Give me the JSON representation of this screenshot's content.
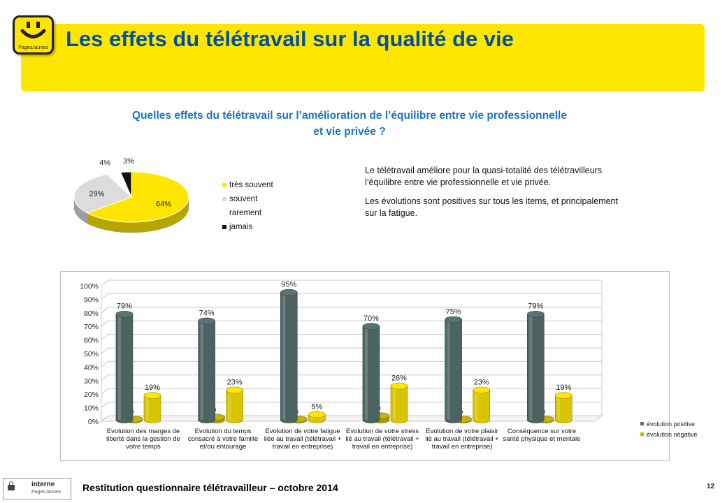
{
  "header": {
    "title": "Les effets du télétravail sur la qualité de vie",
    "logo_text": "PagesJaunes",
    "logo_color": "#ffe600"
  },
  "question": {
    "line1": "Quelles effets du télétravail sur l’amélioration de l’équilibre entre vie professionnelle",
    "line2": "et vie privée ?"
  },
  "summary": {
    "p1": "Le télétravail améliore pour la quasi-totalité des télétravilleurs l’équilibre entre vie professionnelle et vie privée.",
    "p2": "Les évolutions sont positives sur tous les items, et principalement sur la fatigue."
  },
  "chart_data": [
    {
      "type": "pie",
      "labels": [
        "très souvent",
        "souvent",
        "rarement",
        "jamais"
      ],
      "values": [
        64,
        29,
        4,
        3
      ],
      "value_labels": [
        "64%",
        "29%",
        "4%",
        "3%"
      ],
      "legend_lines": [
        "très souvent",
        "souvent",
        "rarement",
        "jamais"
      ],
      "colors": [
        "#ffe600",
        "#dcdcdc",
        "#ffffff",
        "#111111"
      ],
      "legend": "right"
    },
    {
      "type": "bar",
      "categories": [
        "Evolution des marges de liberté dans la gestion de votre temps",
        "Evolution du temps consacré à votre famille et/ou entourage",
        "Evolution de votre fatigue liée au travail (télétravail + travail en entreprise)",
        "Evolution de votre stress lié au travail (télétravail + travail en entreprise)",
        "Evolution de votre plaisir lié au travail (télétravail + travail en entreprise)",
        "Conséquence sur votre santé physique et mentale"
      ],
      "series": [
        {
          "name": "évolution positive",
          "values": [
            79,
            74,
            95,
            70,
            75,
            79
          ],
          "labels": [
            "79%",
            "74%",
            "95%",
            "70%",
            "75%",
            "79%"
          ],
          "color": "#5a7473"
        },
        {
          "name": "évolution négative",
          "values": [
            1,
            3,
            0,
            4,
            1,
            1
          ],
          "labels": [
            "1%",
            "3%",
            "0%",
            "4%",
            "1%",
            "1%"
          ],
          "color": "#c8b400"
        },
        {
          "name": "",
          "values": [
            19,
            23,
            5,
            26,
            23,
            19
          ],
          "labels": [
            "19%",
            "23%",
            "5%",
            "26%",
            "23%",
            "19%"
          ],
          "color": "#ffe600"
        }
      ],
      "yticks": [
        "0%",
        "10%",
        "20%",
        "30%",
        "40%",
        "50%",
        "60%",
        "70%",
        "80%",
        "90%",
        "100%"
      ],
      "ylim": [
        0,
        100
      ],
      "grid": true,
      "legend": "bottom-right"
    }
  ],
  "footer": {
    "badge_label": "interne",
    "badge_sub": "PagesJaunes",
    "text": "Restitution questionnaire télétravailleur – octobre 2014",
    "page_number": "12"
  }
}
